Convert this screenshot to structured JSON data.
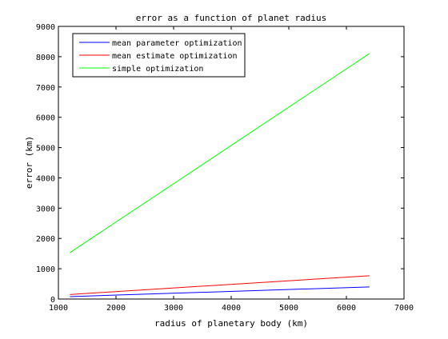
{
  "chart_data": {
    "type": "line",
    "title": "error as a function of planet radius",
    "xlabel": "radius of planetary body (km)",
    "ylabel": "error (km)",
    "xlim": [
      1000,
      7000
    ],
    "ylim": [
      0,
      9000
    ],
    "xticks": [
      1000,
      2000,
      3000,
      4000,
      5000,
      6000,
      7000
    ],
    "yticks": [
      0,
      1000,
      2000,
      3000,
      4000,
      5000,
      6000,
      7000,
      8000,
      9000
    ],
    "grid": false,
    "legend_position": "top-left",
    "series": [
      {
        "name": "mean parameter optimization",
        "color": "#0000ff",
        "x": [
          1200,
          6400
        ],
        "y": [
          80,
          400
        ]
      },
      {
        "name": "mean estimate optimization",
        "color": "#ff0000",
        "x": [
          1200,
          6400
        ],
        "y": [
          150,
          770
        ]
      },
      {
        "name": "simple optimization",
        "color": "#00ff00",
        "x": [
          1200,
          6400
        ],
        "y": [
          1530,
          8100
        ]
      }
    ]
  }
}
